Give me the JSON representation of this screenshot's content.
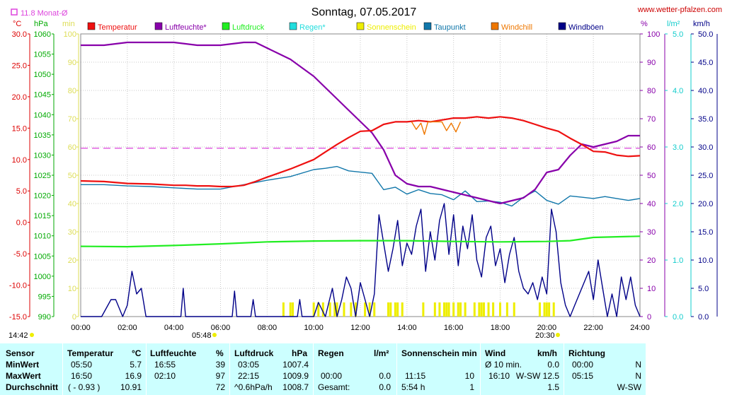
{
  "title": "Sonntag, 07.05.2017",
  "source": "www.wetter-pfalzen.com",
  "monthly_avg_label": "11.8 Monat-Ø",
  "colors": {
    "temperature": "#ee1111",
    "humidity": "#8800aa",
    "pressure": "#22ee22",
    "rain": "#22dddd",
    "sunshine": "#eeee00",
    "dewpoint": "#1177aa",
    "windchill": "#ee7700",
    "gusts": "#000088",
    "avg_line": "#dd44dd",
    "temp_axis": "#dd0000",
    "pressure_axis": "#00aa00",
    "sun_axis": "#dddd55",
    "rain_axis": "#11cccc"
  },
  "chart_data": {
    "type": "line",
    "title": "Sonntag, 07.05.2017",
    "x_unit": "hours",
    "x_ticks": [
      "00:00",
      "02:00",
      "04:00",
      "06:00",
      "08:00",
      "10:00",
      "12:00",
      "14:00",
      "16:00",
      "18:00",
      "20:00",
      "22:00",
      "24:00"
    ],
    "axes": {
      "temp": {
        "unit": "°C",
        "min": -15,
        "max": 30,
        "step": 5,
        "ticks": [
          "-15.0",
          "-10.0",
          "-5.0",
          "0.0",
          "5.0",
          "10.0",
          "15.0",
          "20.0",
          "25.0",
          "30.0"
        ]
      },
      "pressure": {
        "unit": "hPa",
        "min": 990,
        "max": 1060,
        "step": 5,
        "ticks": [
          "990",
          "995",
          "1000",
          "1005",
          "1010",
          "1015",
          "1020",
          "1025",
          "1030",
          "1035",
          "1040",
          "1045",
          "1050",
          "1055",
          "1060"
        ]
      },
      "sun": {
        "unit": "min",
        "min": 0,
        "max": 100,
        "step": 10,
        "ticks": [
          "0",
          "10",
          "20",
          "30",
          "40",
          "50",
          "60",
          "70",
          "80",
          "90",
          "100"
        ]
      },
      "humidity": {
        "unit": "%",
        "min": 0,
        "max": 100,
        "step": 10,
        "ticks": [
          "0",
          "10",
          "20",
          "30",
          "40",
          "50",
          "60",
          "70",
          "80",
          "90",
          "100"
        ]
      },
      "rain": {
        "unit": "l/m²",
        "min": 0,
        "max": 5,
        "step": 1,
        "ticks": [
          "0.0",
          "1.0",
          "2.0",
          "3.0",
          "4.0",
          "5.0"
        ]
      },
      "wind": {
        "unit": "km/h",
        "min": 0,
        "max": 50,
        "step": 5,
        "ticks": [
          "0.0",
          "5.0",
          "10.0",
          "15.0",
          "20.0",
          "25.0",
          "30.0",
          "35.0",
          "40.0",
          "45.0",
          "50.0"
        ]
      }
    },
    "legend": [
      "Temperatur",
      "Luftfeuchte*",
      "Luftdruck",
      "Regen*",
      "Sonnenschein",
      "Taupunkt",
      "Windchill",
      "Windböen"
    ],
    "monthly_avg_temp": 11.8,
    "sunrise": "05:48",
    "sunset": "20:30",
    "daylength_start": "14:42",
    "series": [
      {
        "name": "Temperatur",
        "axis": "temp",
        "x": [
          0,
          1,
          2,
          3,
          4,
          4.5,
          5,
          5.5,
          6,
          6.5,
          7,
          7.5,
          8,
          9,
          10,
          10.5,
          11,
          11.5,
          12,
          12.5,
          13,
          13.5,
          14,
          14.5,
          15,
          15.5,
          16,
          16.5,
          17,
          17.5,
          18,
          18.5,
          19,
          19.5,
          20,
          20.5,
          21,
          21.5,
          22,
          22.5,
          23,
          23.5,
          24
        ],
        "y": [
          6.6,
          6.5,
          6.2,
          6.1,
          5.9,
          5.9,
          5.8,
          5.8,
          5.7,
          5.7,
          5.9,
          6.5,
          7.2,
          8.5,
          10.0,
          11.2,
          12.4,
          13.5,
          14.5,
          14.6,
          15.6,
          16.0,
          16.0,
          16.2,
          16.0,
          16.3,
          16.6,
          16.6,
          16.8,
          16.6,
          16.8,
          16.6,
          16.2,
          15.6,
          15.0,
          14.5,
          13.4,
          12.4,
          11.3,
          11.2,
          10.7,
          10.5,
          10.6
        ]
      },
      {
        "name": "Luftfeuchte*",
        "axis": "humidity",
        "x": [
          0,
          1,
          2,
          3,
          4,
          5,
          6,
          7,
          7.5,
          8,
          8.5,
          9,
          9.5,
          10,
          10.5,
          11,
          11.5,
          12,
          12.5,
          13,
          13.5,
          14,
          14.5,
          15,
          15.5,
          16,
          16.5,
          17,
          17.5,
          18,
          18.5,
          19,
          19.5,
          20,
          20.5,
          21,
          21.5,
          22,
          22.5,
          23,
          23.5,
          24
        ],
        "y": [
          96,
          96,
          97,
          97,
          97,
          96,
          96,
          97,
          97,
          95,
          93,
          91,
          88,
          85,
          81,
          77,
          73,
          69,
          65,
          59,
          50,
          47,
          46,
          46,
          45,
          44,
          43,
          42,
          41,
          40,
          41,
          42,
          45,
          51,
          52,
          57,
          61,
          60,
          61,
          62,
          64,
          64
        ]
      },
      {
        "name": "Luftdruck",
        "axis": "pressure",
        "x": [
          0,
          2,
          4,
          6,
          8,
          10,
          12,
          14,
          16,
          18,
          20,
          21,
          22,
          24
        ],
        "y": [
          1007.4,
          1007.3,
          1007.6,
          1008.0,
          1008.5,
          1008.7,
          1008.8,
          1008.8,
          1008.6,
          1008.5,
          1008.6,
          1008.8,
          1009.6,
          1009.9
        ]
      },
      {
        "name": "Taupunkt",
        "axis": "temp",
        "x": [
          0,
          1,
          2,
          3,
          4,
          5,
          6,
          7,
          8,
          9,
          10,
          10.5,
          11,
          11.5,
          12,
          12.5,
          13,
          13.5,
          14,
          14.5,
          15,
          15.5,
          16,
          16.5,
          17,
          17.5,
          18,
          18.5,
          19,
          19.5,
          20,
          20.5,
          21,
          21.5,
          22,
          22.5,
          23,
          23.5,
          24
        ],
        "y": [
          6.0,
          6.0,
          5.8,
          5.7,
          5.5,
          5.3,
          5.3,
          6.0,
          6.7,
          7.3,
          8.4,
          8.6,
          8.9,
          8.2,
          8.0,
          7.8,
          5.2,
          5.6,
          4.5,
          5.2,
          4.6,
          4.4,
          3.6,
          5.0,
          3.3,
          3.4,
          3.2,
          2.6,
          4.0,
          5.0,
          3.5,
          2.9,
          4.2,
          4.0,
          3.8,
          4.1,
          3.8,
          3.5,
          3.8
        ]
      },
      {
        "name": "Windchill",
        "axis": "temp",
        "x": [
          14.2,
          14.4,
          14.6,
          14.75,
          14.9,
          15.5,
          15.7,
          15.9,
          16.1,
          16.3
        ],
        "y": [
          16.0,
          14.8,
          15.8,
          14.0,
          16.0,
          16.0,
          14.6,
          15.8,
          14.4,
          16.0
        ]
      },
      {
        "name": "Windböen",
        "axis": "wind",
        "x": [
          0,
          0.9,
          1.1,
          1.3,
          1.5,
          1.8,
          2.0,
          2.2,
          2.4,
          2.6,
          2.8,
          3.0,
          3.2,
          4.3,
          4.4,
          4.5,
          6.5,
          6.6,
          6.7,
          7.3,
          7.4,
          7.5,
          9.3,
          9.4,
          9.5,
          10.0,
          10.2,
          10.5,
          10.8,
          11.0,
          11.2,
          11.4,
          11.6,
          11.8,
          12.0,
          12.2,
          12.4,
          12.6,
          12.8,
          13.0,
          13.2,
          13.4,
          13.6,
          13.8,
          14.0,
          14.2,
          14.4,
          14.6,
          14.8,
          15.0,
          15.2,
          15.4,
          15.6,
          15.8,
          16.0,
          16.2,
          16.4,
          16.6,
          16.8,
          17.0,
          17.2,
          17.4,
          17.6,
          17.8,
          18.0,
          18.2,
          18.4,
          18.6,
          18.8,
          19.0,
          19.2,
          19.4,
          19.6,
          19.8,
          20.0,
          20.2,
          20.4,
          20.6,
          20.8,
          21.0,
          21.2,
          21.4,
          21.6,
          21.8,
          22.0,
          22.2,
          22.4,
          22.6,
          22.8,
          23.0,
          23.2,
          23.4,
          23.6,
          23.8,
          24.0
        ],
        "y": [
          0,
          0,
          1.5,
          3.0,
          3.0,
          0,
          2.0,
          8.0,
          4.0,
          5.0,
          0,
          0,
          0,
          0,
          5.0,
          0,
          0,
          4.5,
          0,
          0,
          3.0,
          0,
          0,
          3.0,
          0,
          0,
          2.5,
          0,
          5.0,
          0,
          3.0,
          7.0,
          5.0,
          0,
          6.0,
          3.0,
          0,
          4.0,
          18.0,
          13.0,
          8.0,
          12.0,
          17.0,
          9.0,
          13.0,
          11.0,
          16.0,
          19.0,
          8.0,
          15.0,
          10.0,
          17.0,
          20.0,
          11.0,
          18.0,
          9.0,
          16.0,
          12.0,
          18.0,
          10.0,
          7.0,
          14.0,
          16.0,
          9.0,
          12.0,
          6.0,
          11.0,
          14.0,
          8.0,
          5.0,
          4.0,
          6.0,
          3.0,
          7.0,
          4.0,
          19.0,
          15.0,
          6.0,
          2.0,
          0,
          2.0,
          4.0,
          6.0,
          8.0,
          3.0,
          10.0,
          5.0,
          0,
          4.0,
          0,
          7.0,
          3.0,
          7.0,
          2.0,
          0
        ]
      },
      {
        "name": "Sonnenschein",
        "axis": "sun",
        "type": "bar",
        "x": [
          8.7,
          9.0,
          9.1,
          10.0,
          10.2,
          10.4,
          10.7,
          10.9,
          11.0,
          11.3,
          11.6,
          11.8,
          12.2,
          12.4,
          12.6,
          13.2,
          13.3,
          13.5,
          13.6,
          13.8,
          14.7,
          15.2,
          15.4,
          15.6,
          15.7,
          15.8,
          16.0,
          16.2,
          16.3,
          16.5,
          16.9,
          17.1,
          17.2,
          17.3,
          17.5,
          17.7,
          18.0,
          18.3,
          18.6,
          19.7,
          19.9,
          20.0,
          20.1,
          20.3
        ],
        "y": [
          5,
          5,
          5,
          5,
          5,
          5,
          5,
          5,
          5,
          5,
          5,
          5,
          5,
          5,
          5,
          5,
          5,
          5,
          5,
          5,
          5,
          5,
          5,
          5,
          5,
          5,
          5,
          5,
          5,
          5,
          5,
          5,
          5,
          5,
          5,
          5,
          5,
          5,
          5,
          5,
          5,
          5,
          5,
          5
        ]
      },
      {
        "name": "Regen*",
        "axis": "rain",
        "type": "bar",
        "x": [],
        "y": []
      }
    ]
  },
  "stats": {
    "headers": {
      "sensor": "Sensor",
      "temp": "Temperatur",
      "temp_unit": "°C",
      "hum": "Luftfeuchte",
      "hum_unit": "%",
      "press": "Luftdruck",
      "press_unit": "hPa",
      "rain": "Regen",
      "rain_unit": "l/m²",
      "sun": "Sonnenschein min",
      "wind": "Wind",
      "wind_unit": "km/h",
      "dir": "Richtung"
    },
    "rows": [
      {
        "label": "MinWert",
        "temp_time": "05:50",
        "temp_val": "5.7",
        "hum_time": "16:55",
        "hum_val": "39",
        "press_time": "03:05",
        "press_val": "1007.4",
        "rain_time": "",
        "rain_val": "",
        "sun_time": "",
        "sun_val": "",
        "wind_time": "Ø 10 min.",
        "wind_val": "0.0",
        "dir_time": "00:00",
        "dir_val": "N"
      },
      {
        "label": "MaxWert",
        "temp_time": "16:50",
        "temp_val": "16.9",
        "hum_time": "02:10",
        "hum_val": "97",
        "press_time": "22:15",
        "press_val": "1009.9",
        "rain_time": "00:00",
        "rain_val": "0.0",
        "sun_time": "11:15",
        "sun_val": "10",
        "wind_time": "16:10",
        "wind_val": "W-SW 12.5",
        "dir_time": "05:15",
        "dir_val": "N"
      },
      {
        "label": "Durchschnitt",
        "temp_time": "( - 0.93 )",
        "temp_val": "10.91",
        "hum_time": "",
        "hum_val": "72",
        "press_time": "^0.6hPa/h",
        "press_val": "1008.7",
        "rain_time": "Gesamt:",
        "rain_val": "0.0",
        "sun_time": "5:54 h",
        "sun_val": "1",
        "wind_time": "",
        "wind_val": "1.5",
        "dir_time": "",
        "dir_val": "W-SW"
      }
    ]
  }
}
